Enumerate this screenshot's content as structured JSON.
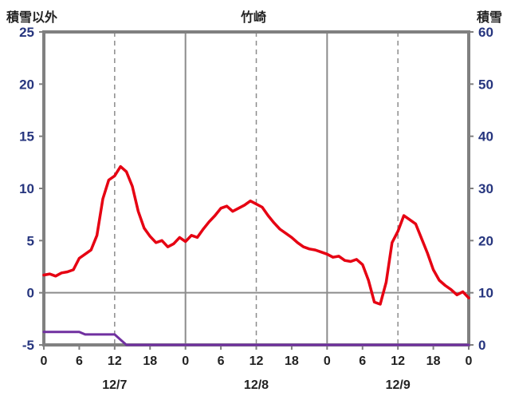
{
  "colors": {
    "temperature_line": "#e60012",
    "snow_line": "#7030a0",
    "grid": "#8c8c8c",
    "frame": "#808080",
    "y_axis_text": "#26357e",
    "x_axis_text": "#222222"
  },
  "chart_data": {
    "type": "line",
    "title": "竹崎",
    "left_axis": {
      "label": "積雪以外",
      "min": -5,
      "max": 25,
      "ticks": [
        25,
        20,
        15,
        10,
        5,
        0,
        -5
      ]
    },
    "right_axis": {
      "label": "積雪",
      "min": 0,
      "max": 60,
      "ticks": [
        60,
        50,
        40,
        30,
        20,
        10,
        0
      ]
    },
    "x_axis": {
      "hours_total": 72,
      "tick_interval": 6,
      "tick_labels": [
        "0",
        "6",
        "12",
        "18",
        "0",
        "6",
        "12",
        "18",
        "0",
        "6",
        "12",
        "18",
        "0"
      ],
      "date_labels": [
        {
          "label": "12/7",
          "hour": 12
        },
        {
          "label": "12/8",
          "hour": 36
        },
        {
          "label": "12/9",
          "hour": 60
        }
      ]
    },
    "grid": {
      "zero_line_left_value": 0,
      "solid_vlines_hours": [
        24,
        48
      ],
      "dashed_vlines_hours": [
        12,
        36,
        60
      ]
    },
    "series": [
      {
        "name": "temperature",
        "axis": "left",
        "color": "#e60012",
        "values": [
          1.7,
          1.8,
          1.6,
          1.9,
          2.0,
          2.2,
          3.3,
          3.7,
          4.1,
          5.5,
          9.0,
          10.8,
          11.2,
          12.1,
          11.6,
          10.2,
          7.8,
          6.2,
          5.4,
          4.8,
          5.0,
          4.4,
          4.7,
          5.3,
          4.9,
          5.5,
          5.3,
          6.1,
          6.8,
          7.4,
          8.1,
          8.3,
          7.8,
          8.1,
          8.4,
          8.8,
          8.5,
          8.2,
          7.4,
          6.7,
          6.1,
          5.7,
          5.3,
          4.8,
          4.4,
          4.2,
          4.1,
          3.9,
          3.7,
          3.4,
          3.5,
          3.1,
          3.0,
          3.2,
          2.7,
          1.2,
          -0.9,
          -1.1,
          1.0,
          4.8,
          5.9,
          7.4,
          7.0,
          6.6,
          5.2,
          3.8,
          2.2,
          1.2,
          0.7,
          0.3,
          -0.2,
          0.1,
          -0.5
        ]
      },
      {
        "name": "snow-depth",
        "axis": "right",
        "color": "#7030a0",
        "values": [
          2.5,
          2.5,
          2.5,
          2.5,
          2.5,
          2.5,
          2.5,
          2.0,
          2.0,
          2.0,
          2.0,
          2.0,
          2.0,
          1.0,
          0,
          0,
          0,
          0,
          0,
          0,
          0,
          0,
          0,
          0,
          0,
          0,
          0,
          0,
          0,
          0,
          0,
          0,
          0,
          0,
          0,
          0,
          0,
          0,
          0,
          0,
          0,
          0,
          0,
          0,
          0,
          0,
          0,
          0,
          0,
          0,
          0,
          0,
          0,
          0,
          0,
          0,
          0,
          0,
          0,
          0,
          0,
          0,
          0,
          0,
          0,
          0,
          0,
          0,
          0,
          0,
          0,
          0,
          0
        ]
      }
    ]
  }
}
